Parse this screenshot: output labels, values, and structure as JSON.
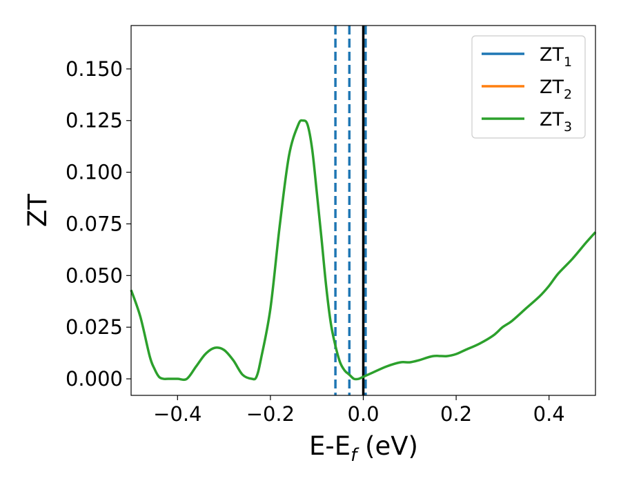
{
  "chart_data": {
    "type": "line",
    "xlabel": "E-E",
    "xlabel_sub": "f",
    "xlabel_unit": " (eV)",
    "ylabel": "ZT",
    "xlim": [
      -0.5,
      0.5
    ],
    "ylim": [
      -0.008,
      0.171
    ],
    "xticks": [
      -0.4,
      -0.2,
      0.0,
      0.2,
      0.4
    ],
    "xtick_labels": [
      "−0.4",
      "−0.2",
      "0.0",
      "0.2",
      "0.4"
    ],
    "yticks": [
      0.0,
      0.025,
      0.05,
      0.075,
      0.1,
      0.125,
      0.15
    ],
    "ytick_labels": [
      "0.000",
      "0.025",
      "0.050",
      "0.075",
      "0.100",
      "0.125",
      "0.150"
    ],
    "grid": false,
    "legend_position": "top-right",
    "series": [
      {
        "name": "ZT",
        "sub": "1",
        "color": "#1f77b4"
      },
      {
        "name": "ZT",
        "sub": "2",
        "color": "#ff7f0e"
      },
      {
        "name": "ZT",
        "sub": "3",
        "color": "#2ca02c"
      }
    ],
    "curve": {
      "color": "#2ca02c",
      "x": [
        -0.5,
        -0.48,
        -0.46,
        -0.45,
        -0.44,
        -0.43,
        -0.42,
        -0.4,
        -0.38,
        -0.36,
        -0.34,
        -0.32,
        -0.3,
        -0.28,
        -0.26,
        -0.24,
        -0.23,
        -0.22,
        -0.2,
        -0.18,
        -0.16,
        -0.14,
        -0.13,
        -0.12,
        -0.11,
        -0.1,
        -0.09,
        -0.08,
        -0.07,
        -0.06,
        -0.05,
        -0.04,
        -0.03,
        -0.02,
        -0.01,
        0.0,
        0.02,
        0.05,
        0.08,
        0.1,
        0.12,
        0.15,
        0.18,
        0.2,
        0.22,
        0.25,
        0.28,
        0.3,
        0.32,
        0.35,
        0.38,
        0.4,
        0.42,
        0.45,
        0.48,
        0.5
      ],
      "y": [
        0.043,
        0.03,
        0.011,
        0.005,
        0.001,
        0.0,
        0.0,
        0.0,
        0.0,
        0.006,
        0.012,
        0.015,
        0.014,
        0.009,
        0.002,
        0.0,
        0.001,
        0.01,
        0.034,
        0.074,
        0.108,
        0.123,
        0.125,
        0.123,
        0.111,
        0.09,
        0.068,
        0.045,
        0.027,
        0.016,
        0.008,
        0.004,
        0.002,
        0.0,
        0.0,
        0.001,
        0.003,
        0.006,
        0.008,
        0.008,
        0.009,
        0.011,
        0.011,
        0.012,
        0.014,
        0.017,
        0.021,
        0.025,
        0.028,
        0.034,
        0.04,
        0.045,
        0.051,
        0.058,
        0.066,
        0.071
      ]
    },
    "vlines": [
      {
        "x": -0.06,
        "color": "#1f77b4",
        "style": "dashed"
      },
      {
        "x": -0.03,
        "color": "#1f77b4",
        "style": "dashed"
      },
      {
        "x": 0.005,
        "color": "#1f77b4",
        "style": "dashed"
      },
      {
        "x": 0.0,
        "color": "#000000",
        "style": "solid"
      }
    ]
  }
}
